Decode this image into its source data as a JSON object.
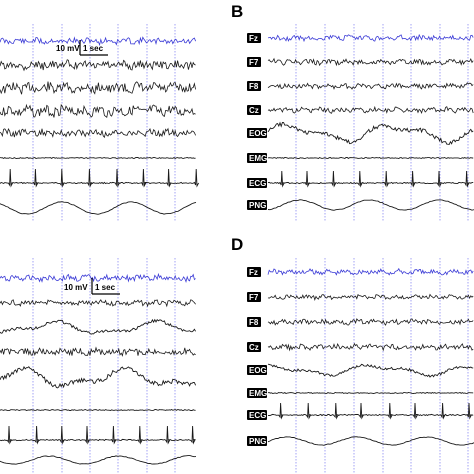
{
  "figure": {
    "colors": {
      "background": "#ffffff",
      "trace": "#1a1a1a",
      "fz_trace": "#3b3bd6",
      "grid": "#7a7af0",
      "label_bg": "#000000",
      "label_text": "#ffffff"
    },
    "scale_bar": {
      "voltage": "10 mV",
      "time": "1 sec"
    },
    "panels": [
      {
        "id": "A",
        "letter": "",
        "channels": [
          {
            "label": "",
            "type": "eeg",
            "amp": 3.5,
            "seed": 11
          },
          {
            "label": "",
            "type": "eeg",
            "amp": 5,
            "seed": 12
          },
          {
            "label": "",
            "type": "eeg",
            "amp": 6,
            "seed": 13
          },
          {
            "label": "",
            "type": "eeg",
            "amp": 6,
            "seed": 14
          },
          {
            "label": "",
            "type": "eeg",
            "amp": 4,
            "seed": 15
          },
          {
            "label": "",
            "type": "emg",
            "amp": 1,
            "seed": 16
          },
          {
            "label": "",
            "type": "ecg",
            "amp": 14,
            "seed": 17
          },
          {
            "label": "",
            "type": "png",
            "amp": 6,
            "seed": 18
          }
        ]
      },
      {
        "id": "B",
        "letter": "B",
        "channels": [
          {
            "label": "Fz",
            "type": "eeg",
            "amp": 3,
            "seed": 21
          },
          {
            "label": "F7",
            "type": "eeg",
            "amp": 3,
            "seed": 22
          },
          {
            "label": "F8",
            "type": "eeg",
            "amp": 3,
            "seed": 23
          },
          {
            "label": "Cz",
            "type": "eeg",
            "amp": 3,
            "seed": 24
          },
          {
            "label": "EOG",
            "type": "eog",
            "amp": 8,
            "seed": 25
          },
          {
            "label": "EMG",
            "type": "emg",
            "amp": 1,
            "seed": 26
          },
          {
            "label": "ECG",
            "type": "ecg",
            "amp": 12,
            "seed": 27
          },
          {
            "label": "PNG",
            "type": "png",
            "amp": 5,
            "seed": 28
          }
        ]
      },
      {
        "id": "C",
        "letter": "",
        "channels": [
          {
            "label": "",
            "type": "eeg",
            "amp": 3.5,
            "seed": 31
          },
          {
            "label": "",
            "type": "eeg",
            "amp": 3,
            "seed": 32
          },
          {
            "label": "",
            "type": "eog",
            "amp": 6,
            "seed": 33
          },
          {
            "label": "",
            "type": "eeg",
            "amp": 4,
            "seed": 34
          },
          {
            "label": "",
            "type": "eog",
            "amp": 9,
            "seed": 35
          },
          {
            "label": "",
            "type": "emg",
            "amp": 1,
            "seed": 36
          },
          {
            "label": "",
            "type": "ecg",
            "amp": 14,
            "seed": 37
          },
          {
            "label": "",
            "type": "png",
            "amp": 4,
            "seed": 38
          }
        ]
      },
      {
        "id": "D",
        "letter": "D",
        "channels": [
          {
            "label": "Fz",
            "type": "eeg",
            "amp": 3,
            "seed": 41
          },
          {
            "label": "F7",
            "type": "eeg",
            "amp": 2.5,
            "seed": 42
          },
          {
            "label": "F8",
            "type": "eeg",
            "amp": 3,
            "seed": 43
          },
          {
            "label": "Cz",
            "type": "eeg",
            "amp": 3,
            "seed": 44
          },
          {
            "label": "EOG",
            "type": "eog",
            "amp": 5,
            "seed": 45
          },
          {
            "label": "EMG",
            "type": "emg",
            "amp": 1,
            "seed": 46
          },
          {
            "label": "ECG",
            "type": "ecg",
            "amp": 12,
            "seed": 47
          },
          {
            "label": "PNG",
            "type": "png",
            "amp": 4,
            "seed": 48
          }
        ]
      }
    ]
  }
}
